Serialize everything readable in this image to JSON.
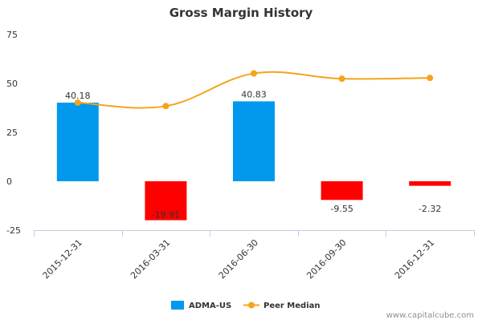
{
  "chart_data": {
    "type": "bar",
    "title": "Gross Margin History",
    "categories": [
      "2015-12-31",
      "2016-03-31",
      "2016-06-30",
      "2016-09-30",
      "2016-12-31"
    ],
    "series": [
      {
        "name": "ADMA-US",
        "kind": "bar",
        "values": [
          40.18,
          -19.91,
          40.83,
          -9.55,
          -2.32
        ],
        "labels": [
          "40.18",
          "-19.91",
          "40.83",
          "-9.55",
          "-2.32"
        ],
        "color_positive": "#0099ee",
        "color_negative": "#ff0000"
      },
      {
        "name": "Peer Median",
        "kind": "line",
        "values": [
          40.2,
          38.4,
          55.1,
          52.4,
          52.8
        ],
        "color": "#f5a31a"
      }
    ],
    "ylim": [
      -25,
      75
    ],
    "yticks": [
      "75",
      "50",
      "25",
      "0",
      "-25"
    ],
    "ytick_values": [
      75,
      50,
      25,
      0,
      -25
    ],
    "grid": false,
    "legend_position": "bottom-center"
  },
  "credit": "www.capitalcube.com"
}
